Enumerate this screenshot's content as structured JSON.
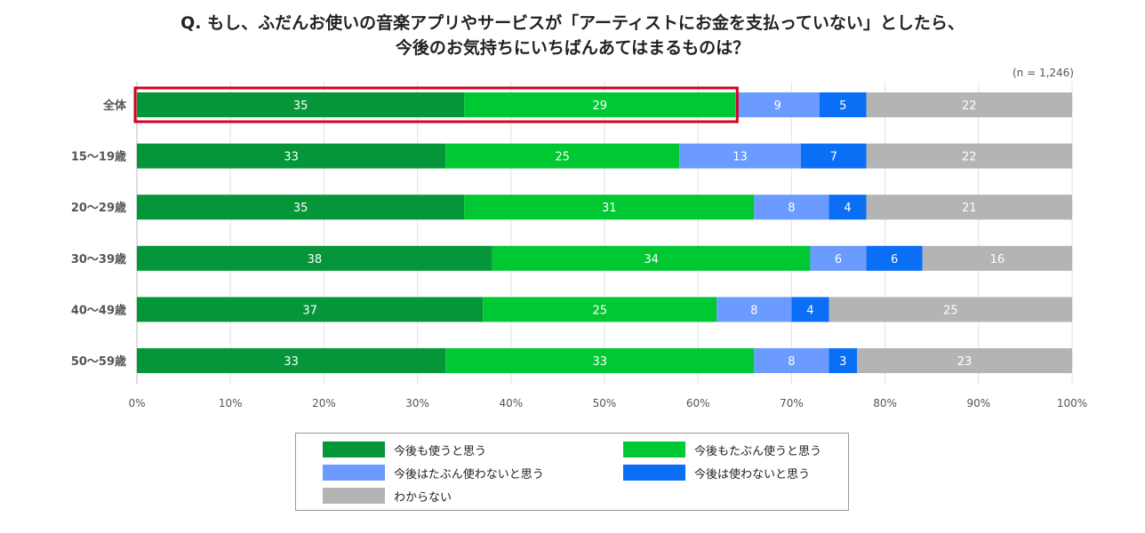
{
  "title_line1": "Q. もし、ふだんお使いの音楽アプリやサービスが「アーティストにお金を支払っていない」としたら、",
  "title_line2": "今後のお気持ちにいちばんあてはまるものは？",
  "sample_note": "(n = 1,246)",
  "chart_data": {
    "type": "bar",
    "orientation": "horizontal",
    "stacked": true,
    "title": "Q. もし、ふだんお使いの音楽アプリやサービスが「アーティストにお金を支払っていない」としたら、今後のお気持ちにいちばんあてはまるものは？",
    "categories": [
      "全体",
      "15〜19歳",
      "20〜29歳",
      "30〜39歳",
      "40〜49歳",
      "50〜59歳"
    ],
    "series": [
      {
        "name": "今後も使うと思う",
        "color": "#05963a",
        "values": [
          35,
          33,
          35,
          38,
          37,
          33
        ]
      },
      {
        "name": "今後もたぶん使うと思う",
        "color": "#00c832",
        "values": [
          29,
          25,
          31,
          34,
          25,
          33
        ]
      },
      {
        "name": "今後はたぶん使わないと思う",
        "color": "#6b9bff",
        "values": [
          9,
          13,
          8,
          6,
          8,
          8
        ]
      },
      {
        "name": "今後は使わないと思う",
        "color": "#0a6ff5",
        "values": [
          5,
          7,
          4,
          6,
          4,
          3
        ]
      },
      {
        "name": "わからない",
        "color": "#b4b4b4",
        "values": [
          22,
          22,
          21,
          16,
          25,
          23
        ]
      }
    ],
    "x_ticks": [
      "0%",
      "10%",
      "20%",
      "30%",
      "40%",
      "50%",
      "60%",
      "70%",
      "80%",
      "90%",
      "100%"
    ],
    "xlim": [
      0,
      100
    ],
    "unit": "%",
    "grid": true,
    "legend_position": "bottom",
    "highlight": {
      "category": "全体",
      "series": [
        "今後も使うと思う",
        "今後もたぶん使うと思う"
      ],
      "color": "#d7001e"
    }
  }
}
